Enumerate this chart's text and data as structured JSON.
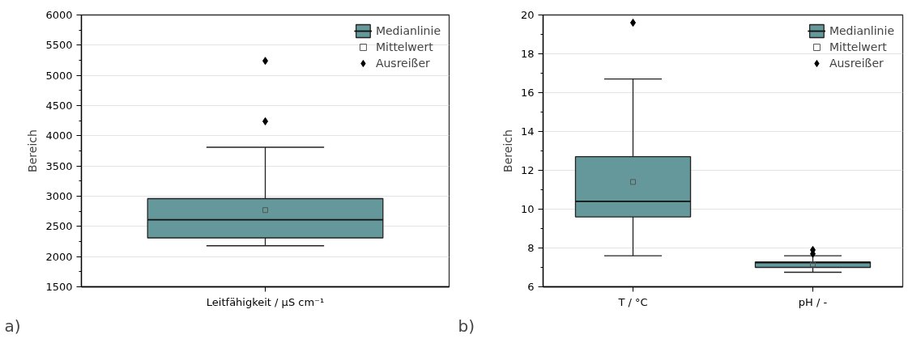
{
  "chart_data": [
    {
      "type": "box",
      "categories": [
        "Leitfähigkeit / µS cm⁻¹"
      ],
      "ylabel": "Bereich",
      "ylim": [
        1500,
        6000
      ],
      "yticks": [
        1500,
        {
          "value": 1750,
          "label": null
        },
        2000,
        {
          "value": 2250,
          "label": null
        },
        2500,
        {
          "value": 2750,
          "label": null
        },
        3000,
        {
          "value": 3250,
          "label": null
        },
        3500,
        {
          "value": 3750,
          "label": null
        },
        4000,
        {
          "value": 4250,
          "label": null
        },
        4500,
        {
          "value": 4750,
          "label": null
        },
        5000,
        {
          "value": 5250,
          "label": null
        },
        5500,
        {
          "value": 5750,
          "label": null
        },
        6000
      ],
      "grid": "y",
      "legend": "top right",
      "annotations": [
        "a)"
      ],
      "series": [
        {
          "name": "Medianlinie",
          "color": "#65989a",
          "boxes": [
            {
              "low": 2180,
              "q1": 2310,
              "median": 2610,
              "q3": 2960,
              "high": 3810
            }
          ]
        },
        {
          "name": "Mittelwert",
          "type": "scatter",
          "marker": "square",
          "color": "#555555",
          "x": [
            "Leitfähigkeit / µS cm⁻¹"
          ],
          "values": [
            2770
          ]
        },
        {
          "name": "Ausreißer",
          "type": "scatter",
          "marker": "diamond",
          "color": "#000000",
          "x": [
            "Leitfähigkeit / µS cm⁻¹",
            "Leitfähigkeit / µS cm⁻¹"
          ],
          "values": [
            4240,
            5240
          ]
        }
      ]
    },
    {
      "type": "box",
      "categories": [
        "T / °C",
        "pH / -"
      ],
      "ylabel": "Bereich",
      "ylim": [
        6,
        20
      ],
      "yticks": [
        6,
        {
          "value": 7,
          "label": null
        },
        8,
        {
          "value": 9,
          "label": null
        },
        10,
        {
          "value": 11,
          "label": null
        },
        12,
        {
          "value": 13,
          "label": null
        },
        14,
        {
          "value": 15,
          "label": null
        },
        16,
        {
          "value": 17,
          "label": null
        },
        18,
        {
          "value": 19,
          "label": null
        },
        20
      ],
      "grid": "y",
      "legend": "top right",
      "annotations": [
        "b)"
      ],
      "series": [
        {
          "name": "Medianlinie",
          "color": "#65989a",
          "boxes": [
            {
              "low": 7.6,
              "q1": 9.6,
              "median": 10.4,
              "q3": 12.7,
              "high": 16.7
            },
            {
              "low": 6.75,
              "q1": 7.0,
              "median": 7.25,
              "q3": 7.28,
              "high": 7.6
            }
          ]
        },
        {
          "name": "Mittelwert",
          "type": "scatter",
          "marker": "square",
          "color": "#555555",
          "x": [
            "T / °C",
            "pH / -"
          ],
          "values": [
            11.4,
            7.15
          ]
        },
        {
          "name": "Ausreißer",
          "type": "scatter",
          "marker": "diamond",
          "color": "#000000",
          "x": [
            "T / °C",
            "pH / -",
            "pH / -"
          ],
          "values": [
            19.6,
            7.7,
            7.9
          ]
        }
      ]
    }
  ]
}
